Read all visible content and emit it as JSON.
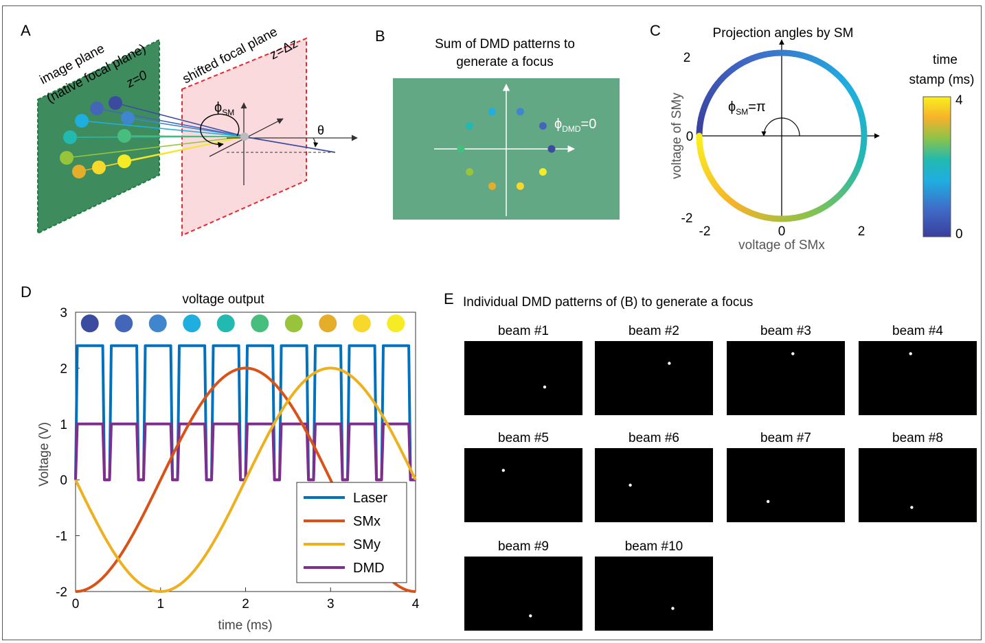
{
  "colors": {
    "panel_green": "#62A884",
    "plane_green": "#3E8C5E",
    "plane_red": "#FADADD",
    "red_dash": "#E8262E",
    "laser": "#0072BD",
    "smx": "#D95319",
    "smy": "#EDB120",
    "dmd": "#7E2F8E",
    "beam_colors": [
      "#3B4CA0",
      "#4466B8",
      "#3F86CF",
      "#1FAEE0",
      "#22B9B0",
      "#48BE7E",
      "#98C43C",
      "#E5AE2A",
      "#F8D92B",
      "#F6EC25"
    ]
  },
  "panel_a": {
    "label": "A",
    "image_plane_line1": "image plane",
    "image_plane_line2": "(native focal plane)",
    "z0": "z=0",
    "shifted_plane": "shifted focal plane",
    "zdz": "z=Δz",
    "phi_sm": "ϕ",
    "phi_sub": "SM",
    "theta": "θ"
  },
  "panel_b": {
    "label": "B",
    "title_line1": "Sum of DMD patterns to",
    "title_line2": "generate a focus",
    "phi": "ϕ",
    "phi_sub": "DMD",
    "phi_val": "=0"
  },
  "panel_c": {
    "label": "C",
    "title": "Projection angles by SM",
    "xlabel": "voltage of SMx",
    "ylabel": "voltage of SMy",
    "xticks": [
      "-2",
      "0",
      "2"
    ],
    "yticks": [
      "2",
      "0",
      "-2"
    ],
    "phi": "ϕ",
    "phi_sub": "SM",
    "phi_val": "=π",
    "colorbar_title_line1": "time",
    "colorbar_title_line2": "stamp (ms)",
    "colorbar_ticks": [
      "4",
      "0"
    ]
  },
  "panel_d": {
    "label": "D",
    "chart_data": {
      "type": "line",
      "title": "voltage output",
      "xlabel": "time (ms)",
      "ylabel": "Voltage (V)",
      "xlim": [
        0,
        4
      ],
      "ylim": [
        -2,
        3
      ],
      "xticks": [
        "0",
        "1",
        "2",
        "3",
        "4"
      ],
      "yticks": [
        "3",
        "2",
        "1",
        "0",
        "-1",
        "-2"
      ],
      "legend_position": "bottom-right",
      "series": [
        {
          "name": "Laser",
          "kind": "pulse",
          "high": 2.4,
          "low": 0,
          "period_ms": 0.4,
          "on_ms": 0.32
        },
        {
          "name": "SMx",
          "kind": "function",
          "formula": "-2*cos(pi*t/2)"
        },
        {
          "name": "SMy",
          "kind": "function",
          "formula": "-2*sin(pi*t/2)"
        },
        {
          "name": "DMD",
          "kind": "pulse",
          "high": 1.0,
          "low": 0,
          "period_ms": 0.4,
          "on_ms": 0.32
        }
      ],
      "beam_markers_y": 2.8
    }
  },
  "panel_e": {
    "label": "E",
    "title": "Individual DMD patterns of (B) to generate a focus",
    "beams": [
      {
        "label": "beam #1",
        "dot_fx": 0.68,
        "dot_fy": 0.62
      },
      {
        "label": "beam #2",
        "dot_fx": 0.63,
        "dot_fy": 0.3
      },
      {
        "label": "beam #3",
        "dot_fx": 0.56,
        "dot_fy": 0.17
      },
      {
        "label": "beam #4",
        "dot_fx": 0.44,
        "dot_fy": 0.17
      },
      {
        "label": "beam #5",
        "dot_fx": 0.33,
        "dot_fy": 0.3
      },
      {
        "label": "beam #6",
        "dot_fx": 0.3,
        "dot_fy": 0.5
      },
      {
        "label": "beam #7",
        "dot_fx": 0.35,
        "dot_fy": 0.72
      },
      {
        "label": "beam #8",
        "dot_fx": 0.45,
        "dot_fy": 0.8
      },
      {
        "label": "beam #9",
        "dot_fx": 0.56,
        "dot_fy": 0.8
      },
      {
        "label": "beam #10",
        "dot_fx": 0.66,
        "dot_fy": 0.7
      }
    ]
  }
}
